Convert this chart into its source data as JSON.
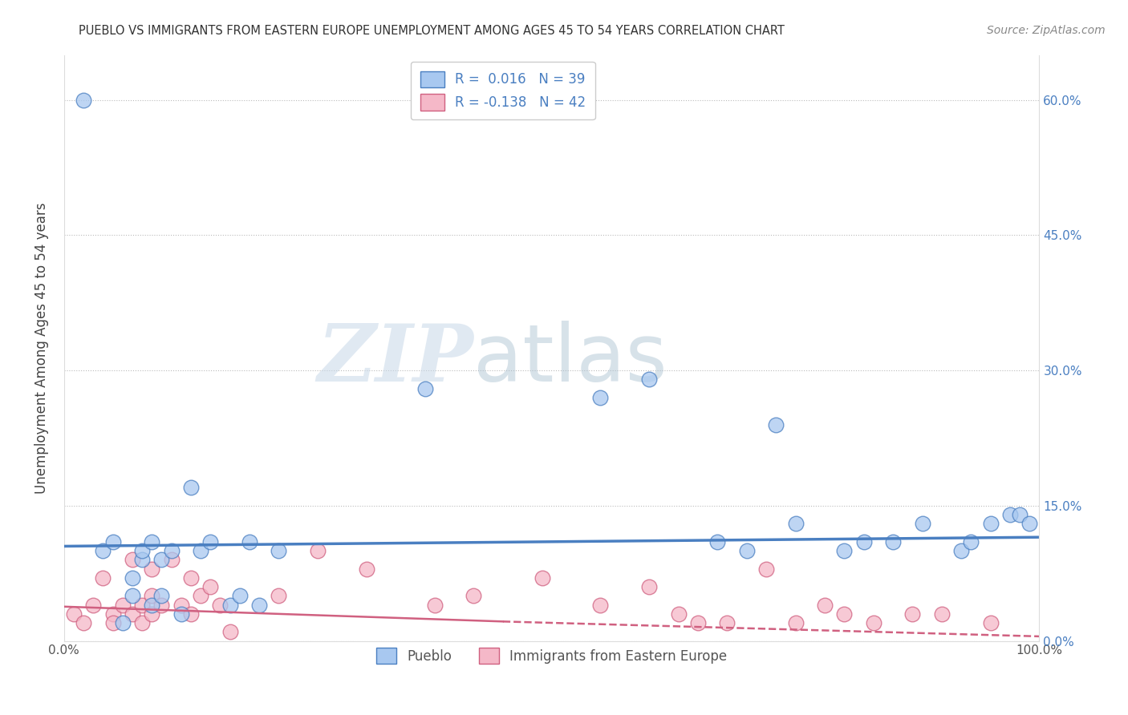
{
  "title": "PUEBLO VS IMMIGRANTS FROM EASTERN EUROPE UNEMPLOYMENT AMONG AGES 45 TO 54 YEARS CORRELATION CHART",
  "source": "Source: ZipAtlas.com",
  "ylabel": "Unemployment Among Ages 45 to 54 years",
  "xlim": [
    0.0,
    1.0
  ],
  "ylim": [
    0.0,
    0.65
  ],
  "xticks": [
    0.0,
    1.0
  ],
  "xtick_labels": [
    "0.0%",
    "100.0%"
  ],
  "yticks": [
    0.0,
    0.15,
    0.3,
    0.45,
    0.6
  ],
  "ytick_labels": [
    "0.0%",
    "15.0%",
    "30.0%",
    "45.0%",
    "60.0%"
  ],
  "pueblo_color": "#a8c8f0",
  "eastern_color": "#f5b8c8",
  "pueblo_line_color": "#4a7fc1",
  "eastern_line_color": "#d06080",
  "pueblo_R": 0.016,
  "pueblo_N": 39,
  "eastern_R": -0.138,
  "eastern_N": 42,
  "legend_label_pueblo": "Pueblo",
  "legend_label_eastern": "Immigrants from Eastern Europe",
  "watermark_zip": "ZIP",
  "watermark_atlas": "atlas",
  "grid_color": "#cccccc",
  "pueblo_x": [
    0.02,
    0.04,
    0.05,
    0.06,
    0.07,
    0.07,
    0.08,
    0.08,
    0.09,
    0.09,
    0.1,
    0.1,
    0.11,
    0.12,
    0.13,
    0.14,
    0.15,
    0.17,
    0.18,
    0.19,
    0.2,
    0.22,
    0.37,
    0.55,
    0.6,
    0.67,
    0.7,
    0.73,
    0.75,
    0.8,
    0.82,
    0.85,
    0.88,
    0.92,
    0.93,
    0.95,
    0.97,
    0.98,
    0.99
  ],
  "pueblo_y": [
    0.6,
    0.1,
    0.11,
    0.02,
    0.07,
    0.05,
    0.09,
    0.1,
    0.04,
    0.11,
    0.05,
    0.09,
    0.1,
    0.03,
    0.17,
    0.1,
    0.11,
    0.04,
    0.05,
    0.11,
    0.04,
    0.1,
    0.28,
    0.27,
    0.29,
    0.11,
    0.1,
    0.24,
    0.13,
    0.1,
    0.11,
    0.11,
    0.13,
    0.1,
    0.11,
    0.13,
    0.14,
    0.14,
    0.13
  ],
  "eastern_x": [
    0.01,
    0.02,
    0.03,
    0.04,
    0.05,
    0.05,
    0.06,
    0.07,
    0.07,
    0.08,
    0.08,
    0.09,
    0.09,
    0.09,
    0.1,
    0.11,
    0.12,
    0.13,
    0.13,
    0.14,
    0.15,
    0.16,
    0.17,
    0.22,
    0.26,
    0.31,
    0.38,
    0.42,
    0.49,
    0.55,
    0.6,
    0.63,
    0.65,
    0.68,
    0.72,
    0.75,
    0.78,
    0.8,
    0.83,
    0.87,
    0.9,
    0.95
  ],
  "eastern_y": [
    0.03,
    0.02,
    0.04,
    0.07,
    0.03,
    0.02,
    0.04,
    0.09,
    0.03,
    0.02,
    0.04,
    0.05,
    0.08,
    0.03,
    0.04,
    0.09,
    0.04,
    0.03,
    0.07,
    0.05,
    0.06,
    0.04,
    0.01,
    0.05,
    0.1,
    0.08,
    0.04,
    0.05,
    0.07,
    0.04,
    0.06,
    0.03,
    0.02,
    0.02,
    0.08,
    0.02,
    0.04,
    0.03,
    0.02,
    0.03,
    0.03,
    0.02
  ],
  "pueblo_trend_y0": 0.105,
  "pueblo_trend_y1": 0.115,
  "eastern_trend_y0": 0.038,
  "eastern_trend_y1": 0.005,
  "text_color_blue": "#4a7fc1",
  "title_color": "#333333",
  "source_color": "#888888"
}
